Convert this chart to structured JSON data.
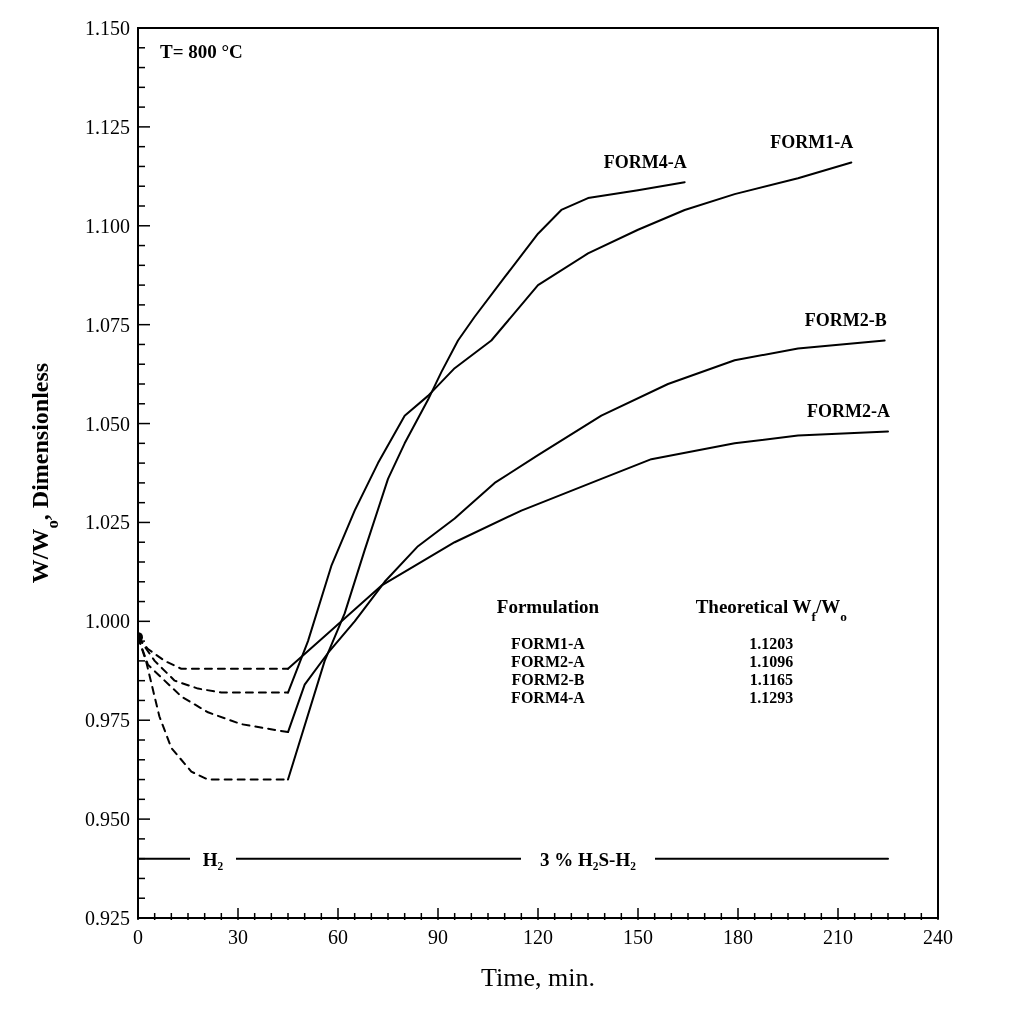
{
  "chart_data": {
    "type": "line",
    "xlabel": "Time, min.",
    "ylabel": "W/W$_{o}$, Dimensionless",
    "xlim": [
      0,
      240
    ],
    "ylim": [
      0.925,
      1.15
    ],
    "xticks": [
      0,
      {
        "value": 5,
        "label": null
      },
      {
        "value": 10,
        "label": null
      },
      {
        "value": 15,
        "label": null
      },
      {
        "value": 20,
        "label": null
      },
      {
        "value": 25,
        "label": null
      },
      30,
      {
        "value": 35,
        "label": null
      },
      {
        "value": 40,
        "label": null
      },
      {
        "value": 45,
        "label": null
      },
      {
        "value": 50,
        "label": null
      },
      {
        "value": 55,
        "label": null
      },
      60,
      {
        "value": 65,
        "label": null
      },
      {
        "value": 70,
        "label": null
      },
      {
        "value": 75,
        "label": null
      },
      {
        "value": 80,
        "label": null
      },
      {
        "value": 85,
        "label": null
      },
      90,
      {
        "value": 95,
        "label": null
      },
      {
        "value": 100,
        "label": null
      },
      {
        "value": 105,
        "label": null
      },
      {
        "value": 110,
        "label": null
      },
      {
        "value": 115,
        "label": null
      },
      120,
      {
        "value": 125,
        "label": null
      },
      {
        "value": 130,
        "label": null
      },
      {
        "value": 135,
        "label": null
      },
      {
        "value": 140,
        "label": null
      },
      {
        "value": 145,
        "label": null
      },
      150,
      {
        "value": 155,
        "label": null
      },
      {
        "value": 160,
        "label": null
      },
      {
        "value": 165,
        "label": null
      },
      {
        "value": 170,
        "label": null
      },
      {
        "value": 175,
        "label": null
      },
      180,
      {
        "value": 185,
        "label": null
      },
      {
        "value": 190,
        "label": null
      },
      {
        "value": 195,
        "label": null
      },
      {
        "value": 200,
        "label": null
      },
      {
        "value": 205,
        "label": null
      },
      210,
      {
        "value": 215,
        "label": null
      },
      {
        "value": 220,
        "label": null
      },
      {
        "value": 225,
        "label": null
      },
      {
        "value": 230,
        "label": null
      },
      {
        "value": 235,
        "label": null
      },
      240
    ],
    "yticks": [
      {
        "value": 0.925,
        "label": "0.925"
      },
      {
        "value": 0.93,
        "label": null
      },
      {
        "value": 0.935,
        "label": null
      },
      {
        "value": 0.94,
        "label": null
      },
      {
        "value": 0.945,
        "label": null
      },
      {
        "value": 0.95,
        "label": "0.950"
      },
      {
        "value": 0.955,
        "label": null
      },
      {
        "value": 0.96,
        "label": null
      },
      {
        "value": 0.965,
        "label": null
      },
      {
        "value": 0.97,
        "label": null
      },
      {
        "value": 0.975,
        "label": "0.975"
      },
      {
        "value": 0.98,
        "label": null
      },
      {
        "value": 0.985,
        "label": null
      },
      {
        "value": 0.99,
        "label": null
      },
      {
        "value": 0.995,
        "label": null
      },
      {
        "value": 1.0,
        "label": "1.000"
      },
      {
        "value": 1.005,
        "label": null
      },
      {
        "value": 1.01,
        "label": null
      },
      {
        "value": 1.015,
        "label": null
      },
      {
        "value": 1.02,
        "label": null
      },
      {
        "value": 1.025,
        "label": "1.025"
      },
      {
        "value": 1.03,
        "label": null
      },
      {
        "value": 1.035,
        "label": null
      },
      {
        "value": 1.04,
        "label": null
      },
      {
        "value": 1.045,
        "label": null
      },
      {
        "value": 1.05,
        "label": "1.050"
      },
      {
        "value": 1.055,
        "label": null
      },
      {
        "value": 1.06,
        "label": null
      },
      {
        "value": 1.065,
        "label": null
      },
      {
        "value": 1.07,
        "label": null
      },
      {
        "value": 1.075,
        "label": "1.075"
      },
      {
        "value": 1.08,
        "label": null
      },
      {
        "value": 1.085,
        "label": null
      },
      {
        "value": 1.09,
        "label": null
      },
      {
        "value": 1.095,
        "label": null
      },
      {
        "value": 1.1,
        "label": "1.100"
      },
      {
        "value": 1.105,
        "label": null
      },
      {
        "value": 1.11,
        "label": null
      },
      {
        "value": 1.115,
        "label": null
      },
      {
        "value": 1.12,
        "label": null
      },
      {
        "value": 1.125,
        "label": "1.125"
      },
      {
        "value": 1.13,
        "label": null
      },
      {
        "value": 1.135,
        "label": null
      },
      {
        "value": 1.14,
        "label": null
      },
      {
        "value": 1.145,
        "label": null
      },
      {
        "value": 1.15,
        "label": "1.150"
      }
    ],
    "grid": false,
    "legend": false,
    "marker": "none",
    "series": [
      {
        "color": "#000000",
        "line_style": "dashed",
        "x": [
          0,
          3,
          8,
          13,
          45
        ],
        "values": [
          0.996,
          0.993,
          0.99,
          0.988,
          0.988
        ]
      },
      {
        "color": "#000000",
        "line_style": "dashed",
        "x": [
          0,
          5,
          11,
          18,
          25,
          45
        ],
        "values": [
          0.996,
          0.99,
          0.985,
          0.983,
          0.982,
          0.982
        ]
      },
      {
        "color": "#000000",
        "line_style": "dashed",
        "x": [
          0,
          3,
          13,
          21,
          31,
          45
        ],
        "values": [
          0.996,
          0.989,
          0.981,
          0.977,
          0.974,
          0.972
        ]
      },
      {
        "color": "#000000",
        "line_style": "dashed",
        "x": [
          0,
          2.4,
          6.4,
          10,
          16,
          21,
          45
        ],
        "values": [
          0.996,
          0.99,
          0.976,
          0.968,
          0.962,
          0.96,
          0.96
        ]
      },
      {
        "name": "FORM4-A",
        "color": "#000000",
        "line_style": "solid",
        "x": [
          45,
          56,
          62,
          68,
          75,
          80,
          87,
          91,
          96,
          101,
          110,
          120,
          127,
          135,
          150,
          164
        ],
        "values": [
          0.96,
          0.99,
          1.002,
          1.018,
          1.036,
          1.045,
          1.056,
          1.063,
          1.071,
          1.077,
          1.087,
          1.098,
          1.104,
          1.107,
          1.109,
          1.111
        ]
      },
      {
        "name": "FORM1-A",
        "color": "#000000",
        "line_style": "solid",
        "x": [
          45,
          51,
          58,
          65,
          72,
          80,
          87,
          95,
          106,
          120,
          135,
          150,
          164,
          179,
          198,
          214
        ],
        "values": [
          0.982,
          0.995,
          1.014,
          1.028,
          1.04,
          1.052,
          1.057,
          1.064,
          1.071,
          1.085,
          1.093,
          1.099,
          1.104,
          1.108,
          1.112,
          1.116
        ]
      },
      {
        "name": "FORM2-B",
        "color": "#000000",
        "line_style": "solid",
        "x": [
          45,
          50,
          57,
          65,
          74,
          84,
          95,
          107,
          120,
          139,
          159,
          179,
          198,
          224
        ],
        "values": [
          0.972,
          0.984,
          0.992,
          1.0,
          1.01,
          1.019,
          1.026,
          1.035,
          1.042,
          1.052,
          1.06,
          1.066,
          1.069,
          1.071
        ]
      },
      {
        "name": "FORM2-A",
        "color": "#000000",
        "line_style": "solid",
        "x": [
          45,
          57,
          65,
          73,
          83,
          95,
          115,
          139,
          154,
          179,
          198,
          225
        ],
        "values": [
          0.988,
          0.997,
          1.003,
          1.009,
          1.014,
          1.02,
          1.028,
          1.036,
          1.041,
          1.045,
          1.047,
          1.048
        ]
      },
      {
        "type": "scatter",
        "color": "#000000",
        "marker": "circle",
        "x": [
          0
        ],
        "values": [
          0.996
        ]
      },
      {
        "color": "#000000",
        "line_style": "solid",
        "x": [
          0,
          45,
          225
        ],
        "values": [
          0.94,
          0.94,
          0.94
        ]
      }
    ],
    "annotations": [
      "T= 800 °C",
      {
        "text": "H₂",
        "x": 22.5,
        "y": 0.94
      },
      {
        "text": "3 % H₂S-H₂",
        "x": 135,
        "y": 0.94
      },
      "Formulation",
      "Theoretical W$_{f}$/W$_{o}$",
      "FORM1-A",
      "1.1203",
      "FORM2-A",
      "1.1096",
      "FORM2-B",
      "1.1165",
      "FORM4-A",
      "1.1293"
    ]
  }
}
